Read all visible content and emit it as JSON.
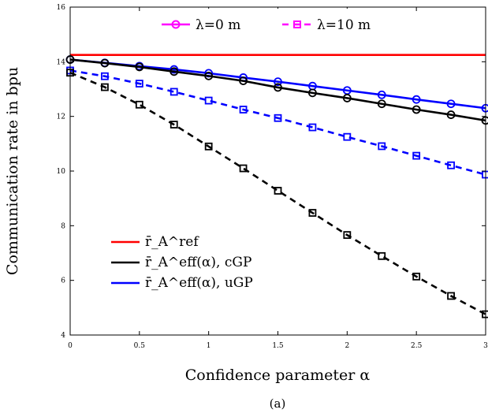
{
  "chart_data": {
    "type": "line",
    "xlabel": "Confidence parameter α",
    "ylabel": "Communication rate in bpu",
    "caption": "(a)",
    "xlim": [
      0,
      3
    ],
    "ylim": [
      4,
      16
    ],
    "x_ticks": [
      "0",
      "0.5",
      "1",
      "1.5",
      "2",
      "2.5",
      "3"
    ],
    "y_ticks": [
      "4",
      "6",
      "8",
      "10",
      "12",
      "14",
      "16"
    ],
    "grid": false,
    "x": [
      0,
      0.25,
      0.5,
      0.75,
      1,
      1.25,
      1.5,
      1.75,
      2,
      2.25,
      2.5,
      2.75,
      3
    ],
    "legend_top": [
      {
        "label": "λ=0 m",
        "color": "#ff00ff",
        "style": "solid",
        "marker": "circle"
      },
      {
        "label": "λ=10 m",
        "color": "#ff00ff",
        "style": "dashed",
        "marker": "square"
      }
    ],
    "legend_bottom": [
      {
        "label": "r̄_A^ref",
        "color": "#ff0000"
      },
      {
        "label": "r̄_A^eff(α), cGP",
        "color": "#000000"
      },
      {
        "label": "r̄_A^eff(α), uGP",
        "color": "#0000ff"
      }
    ],
    "series": [
      {
        "name": "r̄_A^ref",
        "color": "#ff0000",
        "style": "solid",
        "marker": "none",
        "values": [
          14.25,
          14.25,
          14.25,
          14.25,
          14.25,
          14.25,
          14.25,
          14.25,
          14.25,
          14.25,
          14.25,
          14.25,
          14.25
        ]
      },
      {
        "name": "r̄_A^eff(α), uGP, λ=0 m",
        "color": "#0000ff",
        "style": "solid",
        "marker": "circle",
        "values": [
          14.08,
          13.96,
          13.84,
          13.72,
          13.58,
          13.42,
          13.27,
          13.11,
          12.95,
          12.79,
          12.62,
          12.46,
          12.3
        ]
      },
      {
        "name": "r̄_A^eff(α), cGP, λ=0 m",
        "color": "#000000",
        "style": "solid",
        "marker": "circle",
        "values": [
          14.08,
          13.95,
          13.81,
          13.64,
          13.48,
          13.3,
          13.06,
          12.86,
          12.67,
          12.46,
          12.25,
          12.06,
          11.85
        ]
      },
      {
        "name": "r̄_A^eff(α), uGP, λ=10 m",
        "color": "#0000ff",
        "style": "dashed",
        "marker": "square",
        "values": [
          13.68,
          13.47,
          13.2,
          12.9,
          12.58,
          12.25,
          11.94,
          11.6,
          11.25,
          10.91,
          10.56,
          10.21,
          9.87
        ]
      },
      {
        "name": "r̄_A^eff(α), cGP, λ=10 m",
        "color": "#000000",
        "style": "dashed",
        "marker": "square",
        "values": [
          13.6,
          13.07,
          12.43,
          11.7,
          10.9,
          10.1,
          9.28,
          8.47,
          7.66,
          6.89,
          6.14,
          5.43,
          4.76
        ]
      }
    ]
  }
}
